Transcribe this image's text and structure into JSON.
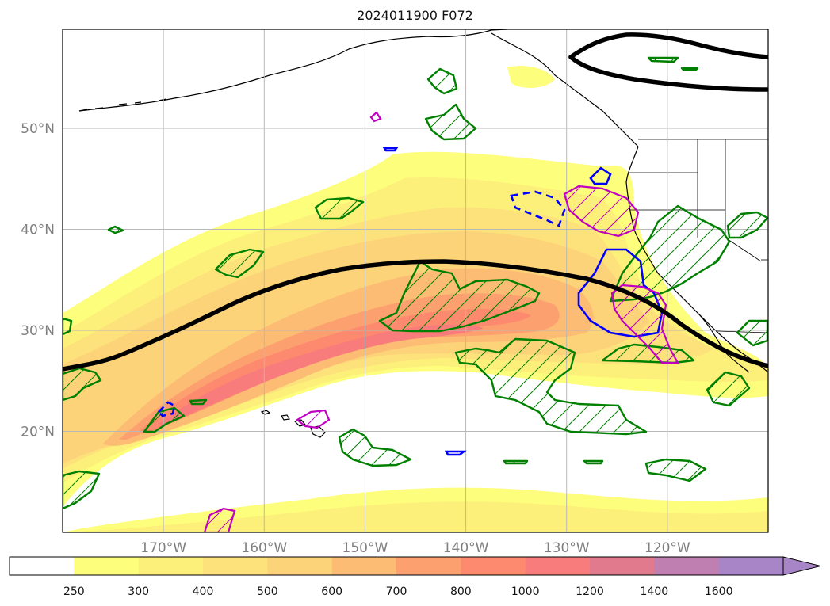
{
  "title": "2024011900 F072",
  "map": {
    "lon_range": [
      -180,
      -110
    ],
    "lat_range": [
      10,
      60
    ],
    "lat_labels": [
      {
        "value": 20,
        "text": "20°N"
      },
      {
        "value": 30,
        "text": "30°N"
      },
      {
        "value": 40,
        "text": "40°N"
      },
      {
        "value": 50,
        "text": "50°N"
      }
    ],
    "lon_labels": [
      {
        "value": -170,
        "text": "170°W"
      },
      {
        "value": -160,
        "text": "160°W"
      },
      {
        "value": -150,
        "text": "150°W"
      },
      {
        "value": -140,
        "text": "140°W"
      },
      {
        "value": -130,
        "text": "130°W"
      },
      {
        "value": -120,
        "text": "120°W"
      }
    ],
    "grid": true,
    "ivt_band_colors": [
      "#fefe7d",
      "#fdf07a",
      "#fde27c",
      "#fdd37a",
      "#fdbc73",
      "#fda070",
      "#fd8a6f",
      "#f97c7c"
    ],
    "jet_contour_color": "#000000",
    "green_contour_color": "#008000",
    "blue_contour_color": "#0000ff",
    "magenta_contour_color": "#c000c0"
  },
  "colorbar": {
    "levels": [
      "250",
      "300",
      "400",
      "500",
      "600",
      "700",
      "800",
      "1000",
      "1200",
      "1400",
      "1600"
    ],
    "colors": [
      "#ffffff",
      "#fefe7d",
      "#fdf07a",
      "#fde27c",
      "#fdd37a",
      "#fdbc73",
      "#fda070",
      "#fd8a6f",
      "#f97c7c",
      "#e07a8c",
      "#bf7fb0",
      "#a885c6"
    ],
    "extend": "max"
  }
}
